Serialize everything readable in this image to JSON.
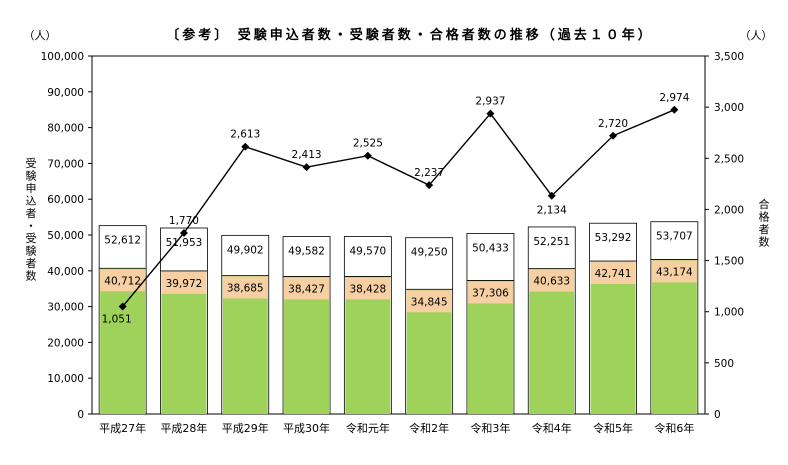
{
  "chart_data": {
    "type": "bar",
    "title": "〔参考〕 受験申込者数・受験者数・合格者数の推移（過去１０年）",
    "left_unit": "（人）",
    "right_unit": "（人）",
    "ylabel_left": "受験申込者・受験者数",
    "ylabel_right": "合格者数",
    "ylim_left": [
      0,
      100000
    ],
    "ylim_right": [
      0,
      3500
    ],
    "yticks_left": [
      "0",
      "10,000",
      "20,000",
      "30,000",
      "40,000",
      "50,000",
      "60,000",
      "70,000",
      "80,000",
      "90,000",
      "100,000"
    ],
    "yticks_right": [
      "0",
      "500",
      "1,000",
      "1,500",
      "2,000",
      "2,500",
      "3,000",
      "3,500"
    ],
    "categories": [
      "平成27年",
      "平成28年",
      "平成29年",
      "平成30年",
      "令和元年",
      "令和2年",
      "令和3年",
      "令和4年",
      "令和5年",
      "令和6年"
    ],
    "series": [
      {
        "values": [
          52612,
          51953,
          49902,
          49582,
          49570,
          49250,
          50433,
          52251,
          53292,
          53707
        ],
        "labels": [
          "52,612",
          "51,953",
          "49,902",
          "49,582",
          "49,570",
          "49,250",
          "50,433",
          "52,251",
          "53,292",
          "53,707"
        ],
        "color": "#ffffff",
        "axis": "left"
      },
      {
        "values": [
          40712,
          39972,
          38685,
          38427,
          38428,
          34845,
          37306,
          40633,
          42741,
          43174
        ],
        "labels": [
          "40,712",
          "39,972",
          "38,685",
          "38,427",
          "38,428",
          "34,845",
          "37,306",
          "40,633",
          "42,741",
          "43,174"
        ],
        "color": "#9fd25b",
        "label_band_color": "#f6cfa2",
        "axis": "left"
      },
      {
        "values": [
          1051,
          1770,
          2613,
          2413,
          2525,
          2237,
          2937,
          2134,
          2720,
          2974
        ],
        "labels": [
          "1,051",
          "1,770",
          "2,613",
          "2,413",
          "2,525",
          "2,237",
          "2,937",
          "2,134",
          "2,720",
          "2,974"
        ],
        "color": "#000000",
        "axis": "right",
        "type": "line"
      }
    ]
  }
}
